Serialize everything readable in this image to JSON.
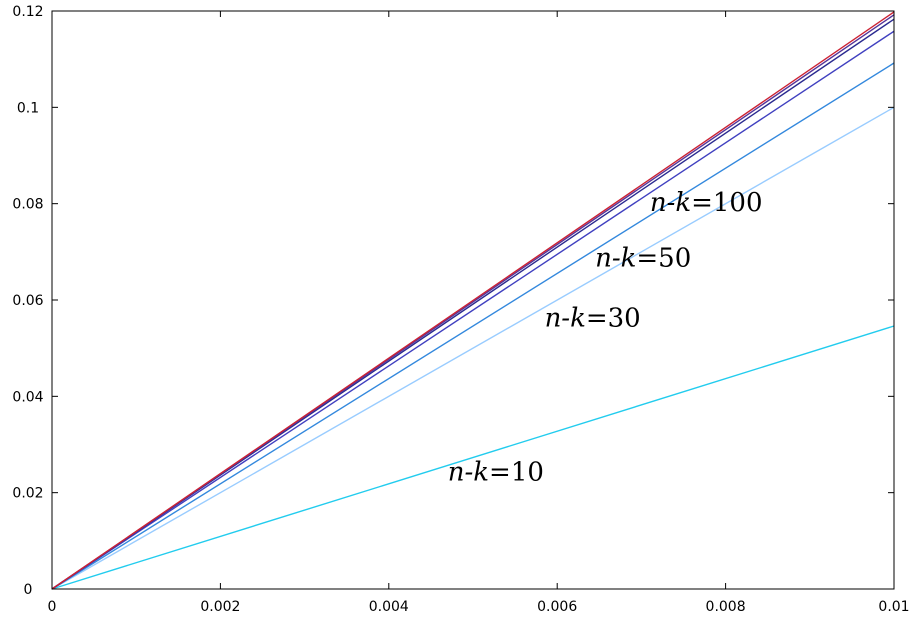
{
  "chart_data": {
    "type": "line",
    "title": "",
    "xlabel": "",
    "ylabel": "",
    "xlim": [
      0,
      0.01
    ],
    "ylim": [
      0,
      0.12
    ],
    "grid": false,
    "x_ticks": [
      "0",
      "0.002",
      "0.004",
      "0.006",
      "0.008",
      "0.01"
    ],
    "y_ticks": [
      "0",
      "0.02",
      "0.04",
      "0.06",
      "0.08",
      "0.1",
      "0.12"
    ],
    "x_tick_values": [
      0,
      0.002,
      0.004,
      0.006,
      0.008,
      0.01
    ],
    "y_tick_values": [
      0,
      0.02,
      0.04,
      0.06,
      0.08,
      0.1,
      0.12
    ],
    "series": [
      {
        "color": "#22ccee",
        "x": [
          0,
          0.01
        ],
        "y": [
          0,
          0.0546
        ]
      },
      {
        "color": "#99ccff",
        "x": [
          0,
          0.01
        ],
        "y": [
          0,
          0.1
        ]
      },
      {
        "color": "#3388dd",
        "x": [
          0,
          0.01
        ],
        "y": [
          0,
          0.1092
        ]
      },
      {
        "color": "#4040c0",
        "x": [
          0,
          0.01
        ],
        "y": [
          0,
          0.1158
        ]
      },
      {
        "color": "#2a2a90",
        "x": [
          0,
          0.01
        ],
        "y": [
          0,
          0.1183
        ]
      },
      {
        "color": "#553399",
        "x": [
          0,
          0.01
        ],
        "y": [
          0,
          0.1192
        ]
      },
      {
        "color": "#cc2233",
        "x": [
          0,
          0.01
        ],
        "y": [
          0,
          0.1198
        ]
      }
    ],
    "annotations": [
      {
        "italic": "n-k",
        "text": "=100",
        "x": 0.0071,
        "y": 0.0785
      },
      {
        "italic": "n-k",
        "text": "=50",
        "x": 0.00645,
        "y": 0.067
      },
      {
        "italic": "n-k",
        "text": "=30",
        "x": 0.00585,
        "y": 0.0545
      },
      {
        "italic": "n-k",
        "text": "=10",
        "x": 0.0047,
        "y": 0.0225
      }
    ]
  }
}
